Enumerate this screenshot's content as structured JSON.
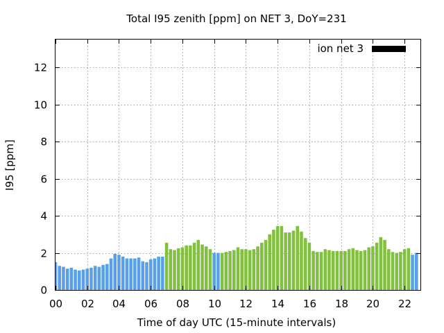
{
  "chart_data": {
    "type": "bar",
    "title": "Total I95 zenith [ppm] on NET 3, DoY=231",
    "xlabel": "Time of day UTC (15-minute intervals)",
    "ylabel": "I95 [ppm]",
    "xlim": [
      0,
      23.0
    ],
    "ylim": [
      0,
      13.5
    ],
    "xticks": [
      "00",
      "02",
      "04",
      "06",
      "08",
      "10",
      "12",
      "14",
      "16",
      "18",
      "20",
      "22"
    ],
    "yticks": [
      "0",
      "2",
      "4",
      "6",
      "8",
      "10",
      "12"
    ],
    "grid": true,
    "legend": {
      "position": "top-right",
      "entries": [
        {
          "label": "ion net 3",
          "color": "#000000"
        }
      ]
    },
    "interval_hours": 0.25,
    "colors": {
      "low": "#5aa0e8",
      "high": "#82c040"
    },
    "series": [
      {
        "values": [
          1.5,
          1.3,
          1.25,
          1.15,
          1.2,
          1.1,
          1.05,
          1.1,
          1.15,
          1.2,
          1.3,
          1.25,
          1.35,
          1.4,
          1.7,
          1.95,
          1.9,
          1.8,
          1.7,
          1.7,
          1.7,
          1.75,
          1.55,
          1.5,
          1.65,
          1.7,
          1.8,
          1.8,
          2.55,
          2.2,
          2.15,
          2.25,
          2.3,
          2.4,
          2.4,
          2.55,
          2.7,
          2.45,
          2.35,
          2.2,
          2.0,
          2.0,
          2.0,
          2.05,
          2.1,
          2.15,
          2.3,
          2.2,
          2.2,
          2.15,
          2.2,
          2.35,
          2.55,
          2.7,
          3.0,
          3.25,
          3.45,
          3.45,
          3.1,
          3.1,
          3.2,
          3.45,
          3.15,
          2.8,
          2.55,
          2.1,
          2.05,
          2.05,
          2.2,
          2.15,
          2.1,
          2.1,
          2.1,
          2.1,
          2.2,
          2.25,
          2.15,
          2.1,
          2.15,
          2.3,
          2.35,
          2.55,
          2.85,
          2.7,
          2.2,
          2.05,
          2.0,
          2.05,
          2.2,
          2.25,
          1.9,
          2.0
        ],
        "category": [
          "low",
          "low",
          "low",
          "low",
          "low",
          "low",
          "low",
          "low",
          "low",
          "low",
          "low",
          "low",
          "low",
          "low",
          "low",
          "low",
          "low",
          "low",
          "low",
          "low",
          "low",
          "low",
          "low",
          "low",
          "low",
          "low",
          "low",
          "low",
          "high",
          "high",
          "high",
          "high",
          "high",
          "high",
          "high",
          "high",
          "high",
          "high",
          "high",
          "high",
          "low",
          "low",
          "high",
          "high",
          "high",
          "high",
          "high",
          "high",
          "high",
          "high",
          "high",
          "high",
          "high",
          "high",
          "high",
          "high",
          "high",
          "high",
          "high",
          "high",
          "high",
          "high",
          "high",
          "high",
          "high",
          "high",
          "high",
          "high",
          "high",
          "high",
          "high",
          "high",
          "high",
          "high",
          "high",
          "high",
          "high",
          "high",
          "high",
          "high",
          "high",
          "high",
          "high",
          "high",
          "high",
          "high",
          "high",
          "high",
          "high",
          "high",
          "low",
          "low"
        ]
      }
    ]
  }
}
